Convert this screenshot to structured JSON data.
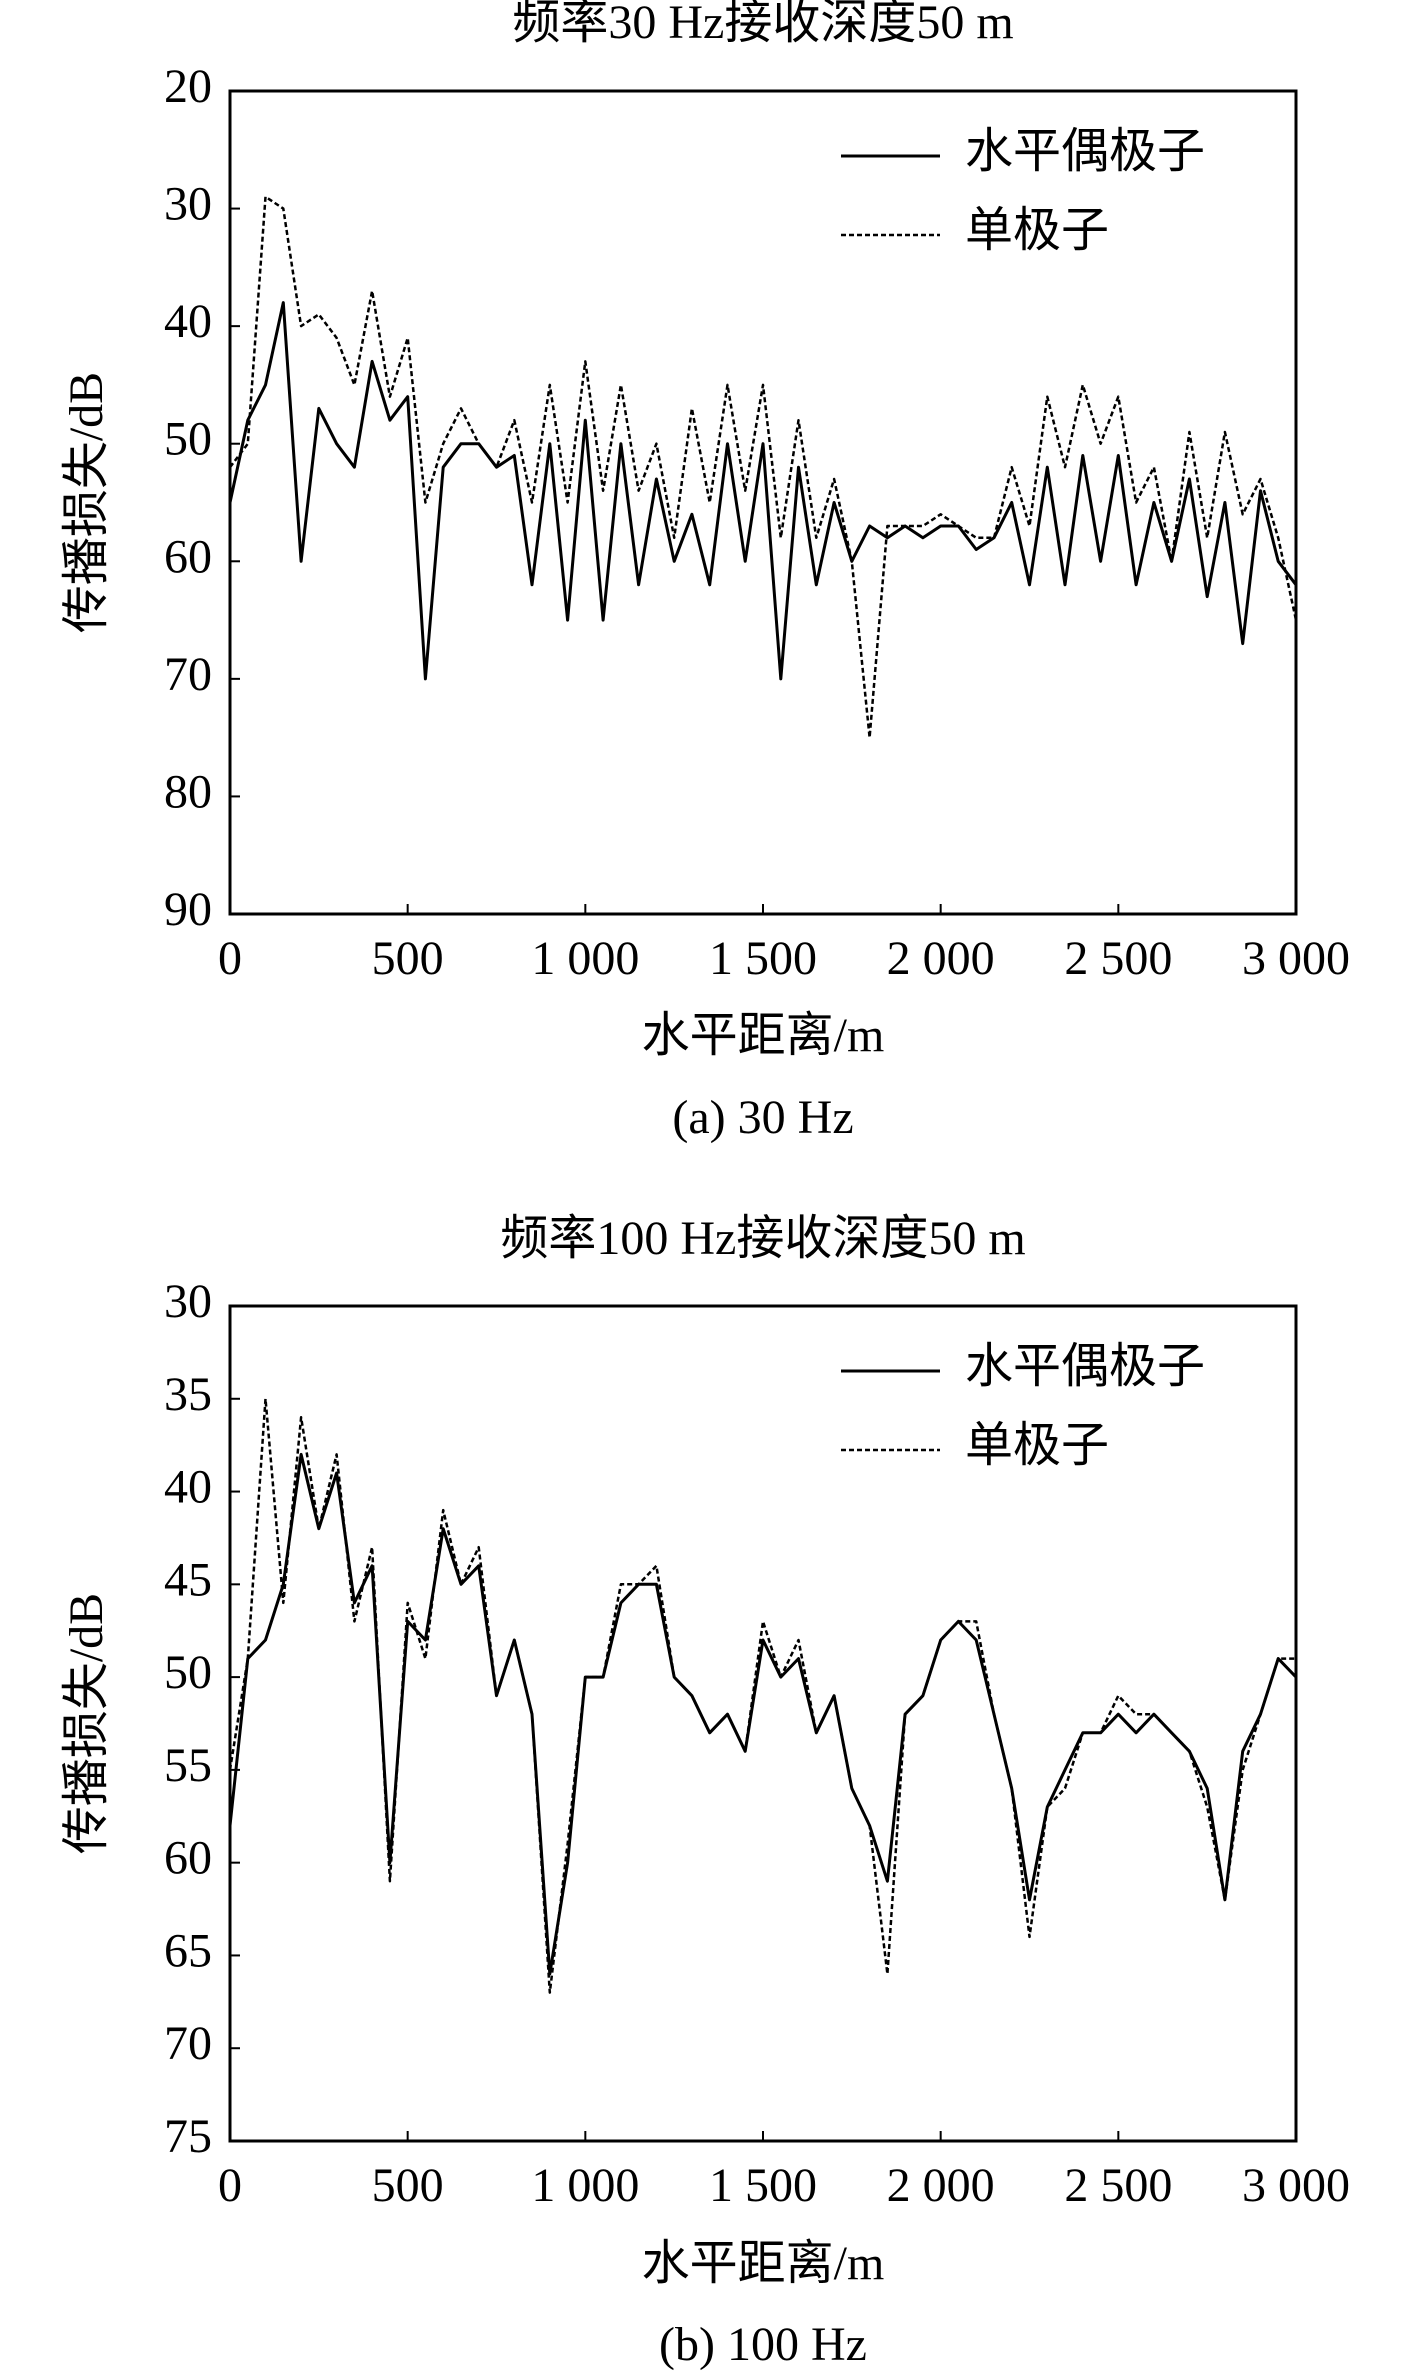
{
  "chart_data": [
    {
      "type": "line",
      "title": "频率30 Hz接收深度50 m",
      "caption": "(a) 30 Hz",
      "x_label": "水平距离/m",
      "y_label": "传播损失/dB",
      "xlim": [
        0,
        3000
      ],
      "xticks": [
        0,
        500,
        {
          "value": 1000,
          "label": "1 000"
        },
        {
          "value": 1500,
          "label": "1 500"
        },
        {
          "value": 2000,
          "label": "2 000"
        },
        {
          "value": 2500,
          "label": "2 500"
        },
        {
          "value": 3000,
          "label": "3 000"
        }
      ],
      "ylim": [
        20,
        90
      ],
      "yticks": [
        20,
        30,
        40,
        50,
        60,
        70,
        80,
        90
      ],
      "y_inverted": true,
      "legend": "upper right",
      "x": [
        0,
        50,
        100,
        150,
        200,
        250,
        300,
        350,
        400,
        450,
        500,
        550,
        600,
        650,
        700,
        750,
        800,
        850,
        900,
        950,
        1000,
        1050,
        1100,
        1150,
        1200,
        1250,
        1300,
        1350,
        1400,
        1450,
        1500,
        1550,
        1600,
        1650,
        1700,
        1750,
        1800,
        1850,
        1900,
        1950,
        2000,
        2050,
        2100,
        2150,
        2200,
        2250,
        2300,
        2350,
        2400,
        2450,
        2500,
        2550,
        2600,
        2650,
        2700,
        2750,
        2800,
        2850,
        2900,
        2950,
        3000
      ],
      "series": [
        {
          "name": "水平偶极子",
          "color": "#000000",
          "dash": "solid",
          "values": [
            55,
            48,
            45,
            38,
            60,
            47,
            50,
            52,
            43,
            48,
            46,
            70,
            52,
            50,
            50,
            52,
            51,
            62,
            50,
            65,
            48,
            65,
            50,
            62,
            53,
            60,
            56,
            62,
            50,
            60,
            50,
            70,
            52,
            62,
            55,
            60,
            57,
            58,
            57,
            58,
            57,
            57,
            59,
            58,
            55,
            62,
            52,
            62,
            51,
            60,
            51,
            62,
            55,
            60,
            53,
            63,
            55,
            67,
            54,
            60,
            62
          ]
        },
        {
          "name": "单极子",
          "color": "#000000",
          "dash": "dotted",
          "values": [
            52,
            50,
            29,
            30,
            40,
            39,
            41,
            45,
            37,
            46,
            41,
            55,
            50,
            47,
            50,
            52,
            48,
            55,
            45,
            55,
            43,
            54,
            45,
            54,
            50,
            58,
            47,
            55,
            45,
            54,
            45,
            58,
            48,
            58,
            53,
            60,
            75,
            57,
            57,
            57,
            56,
            57,
            58,
            58,
            52,
            57,
            46,
            52,
            45,
            50,
            46,
            55,
            52,
            60,
            49,
            58,
            49,
            56,
            53,
            58,
            65
          ]
        }
      ]
    },
    {
      "type": "line",
      "title": "频率100 Hz接收深度50 m",
      "caption": "(b) 100 Hz",
      "x_label": "水平距离/m",
      "y_label": "传播损失/dB",
      "xlim": [
        0,
        3000
      ],
      "xticks": [
        0,
        500,
        {
          "value": 1000,
          "label": "1 000"
        },
        {
          "value": 1500,
          "label": "1 500"
        },
        {
          "value": 2000,
          "label": "2 000"
        },
        {
          "value": 2500,
          "label": "2 500"
        },
        {
          "value": 3000,
          "label": "3 000"
        }
      ],
      "ylim": [
        30,
        75
      ],
      "yticks": [
        30,
        35,
        40,
        45,
        50,
        55,
        60,
        65,
        70,
        75
      ],
      "y_inverted": true,
      "legend": "upper right",
      "x": [
        0,
        50,
        100,
        150,
        200,
        250,
        300,
        350,
        400,
        450,
        500,
        550,
        600,
        650,
        700,
        750,
        800,
        850,
        900,
        950,
        1000,
        1050,
        1100,
        1150,
        1200,
        1250,
        1300,
        1350,
        1400,
        1450,
        1500,
        1550,
        1600,
        1650,
        1700,
        1750,
        1800,
        1850,
        1900,
        1950,
        2000,
        2050,
        2100,
        2150,
        2200,
        2250,
        2300,
        2350,
        2400,
        2450,
        2500,
        2550,
        2600,
        2650,
        2700,
        2750,
        2800,
        2850,
        2900,
        2950,
        3000
      ],
      "series": [
        {
          "name": "水平偶极子",
          "color": "#000000",
          "dash": "solid",
          "values": [
            58,
            49,
            48,
            45,
            38,
            42,
            39,
            46,
            44,
            60,
            47,
            48,
            42,
            45,
            44,
            51,
            48,
            52,
            66,
            60,
            50,
            50,
            46,
            45,
            45,
            50,
            51,
            53,
            52,
            54,
            48,
            50,
            49,
            53,
            51,
            56,
            58,
            61,
            52,
            51,
            48,
            47,
            48,
            52,
            56,
            62,
            57,
            55,
            53,
            53,
            52,
            53,
            52,
            53,
            54,
            56,
            62,
            54,
            52,
            49,
            50
          ]
        },
        {
          "name": "单极子",
          "color": "#000000",
          "dash": "dotted",
          "values": [
            55,
            49,
            35,
            46,
            36,
            42,
            38,
            47,
            43,
            61,
            46,
            49,
            41,
            45,
            43,
            51,
            48,
            52,
            67,
            59,
            50,
            50,
            45,
            45,
            44,
            50,
            51,
            53,
            52,
            54,
            47,
            50,
            48,
            53,
            51,
            56,
            58,
            66,
            52,
            51,
            48,
            47,
            47,
            52,
            56,
            64,
            57,
            56,
            53,
            53,
            51,
            52,
            52,
            53,
            54,
            57,
            62,
            55,
            52,
            49,
            49
          ]
        }
      ]
    }
  ]
}
